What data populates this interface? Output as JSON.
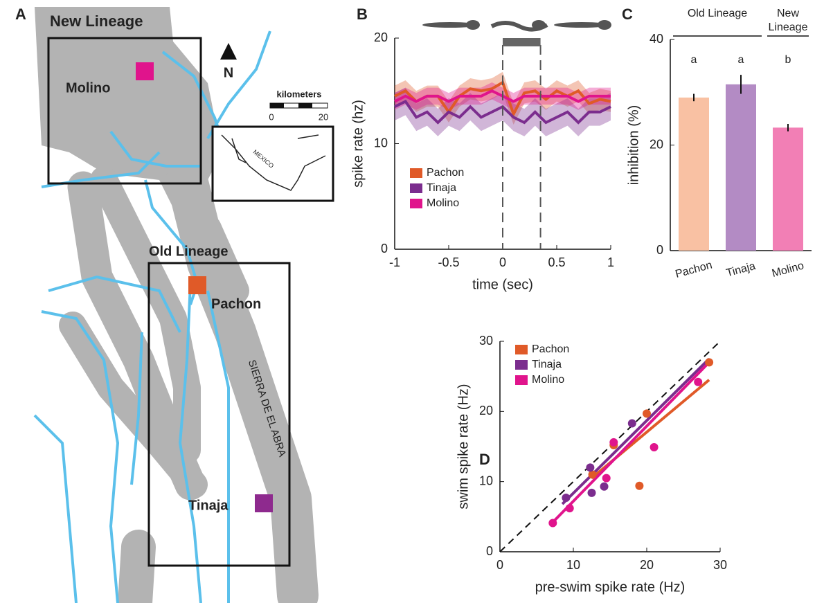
{
  "panel_labels": [
    "A",
    "B",
    "C",
    "D"
  ],
  "map": {
    "new_lineage": "New Lineage",
    "molino": "Molino",
    "north": "N",
    "scale_title": "kilometers",
    "scale_start": "0",
    "scale_end": "20",
    "country": "MEXICO",
    "old_lineage": "Old Lineage",
    "pachon": "Pachon",
    "sierra": "SIERRA DE EL ABRA",
    "tinaja": "Tinaja"
  },
  "chart_data": [
    {
      "type": "line",
      "xlabel": "time (sec)",
      "ylabel": "spike rate (hz)",
      "x": [
        -1,
        -0.9,
        -0.8,
        -0.7,
        -0.6,
        -0.5,
        -0.4,
        -0.3,
        -0.2,
        -0.1,
        0,
        0.1,
        0.2,
        0.3,
        0.4,
        0.5,
        0.6,
        0.7,
        0.8,
        0.9,
        1
      ],
      "xlim": [
        -1,
        1
      ],
      "xticks": [
        -1,
        -0.5,
        0,
        0.5,
        1
      ],
      "ylim": [
        0,
        20
      ],
      "yticks": [
        0,
        10,
        20
      ],
      "swim_window": [
        0,
        0.35
      ],
      "legend": "lower left",
      "series": [
        {
          "name": "Pachon",
          "color": "#e05a28",
          "values": [
            14.5,
            15,
            14,
            14.5,
            14.5,
            13,
            14.5,
            15.2,
            15,
            15.2,
            15.8,
            12.8,
            14.8,
            15,
            14.2,
            15,
            14.5,
            15,
            13.8,
            14.2,
            14
          ],
          "errors": [
            1,
            1,
            1,
            1,
            1,
            1,
            1,
            1,
            1,
            1,
            1,
            1,
            1,
            1,
            1,
            1,
            1,
            1,
            1,
            1,
            1
          ]
        },
        {
          "name": "Tinaja",
          "color": "#7b2d8e",
          "values": [
            13.5,
            14,
            12.5,
            13,
            12,
            13,
            12.5,
            13.5,
            12.5,
            13,
            13.5,
            12.5,
            12,
            13,
            12,
            12.5,
            13,
            12,
            13,
            13,
            13.5
          ],
          "errors": [
            1.3,
            1.3,
            1.3,
            1.3,
            1.3,
            1.3,
            1.3,
            1.3,
            1.3,
            1.3,
            1.3,
            1.3,
            1.3,
            1.3,
            1.3,
            1.3,
            1.3,
            1.3,
            1.3,
            1.3,
            1.3
          ]
        },
        {
          "name": "Molino",
          "color": "#e0148c",
          "values": [
            14,
            14.5,
            14,
            14.5,
            14.5,
            14,
            14.5,
            14.5,
            14.5,
            15,
            14.5,
            14,
            14.5,
            14.5,
            14.5,
            14.5,
            14.5,
            14,
            14.5,
            14.5,
            14.5
          ],
          "errors": [
            0.8,
            0.8,
            0.8,
            0.8,
            0.8,
            0.8,
            0.8,
            0.8,
            0.8,
            0.8,
            0.8,
            0.8,
            0.8,
            0.8,
            0.8,
            0.8,
            0.8,
            0.8,
            0.8,
            0.8,
            0.8
          ]
        }
      ]
    },
    {
      "type": "bar",
      "ylabel": "inhibition (%)",
      "categories": [
        "Pachon",
        "Tinaja",
        "Molino"
      ],
      "values": [
        29,
        31.5,
        23.3
      ],
      "errors": [
        0.7,
        1.8,
        0.7
      ],
      "colors": [
        "#f9c1a3",
        "#b38bc4",
        "#f27fb5"
      ],
      "annotations": [
        "a",
        "a",
        "b"
      ],
      "group_labels": [
        "Old Lineage",
        "New Lineage"
      ],
      "ylim": [
        0,
        40
      ],
      "yticks": [
        0,
        20,
        40
      ]
    },
    {
      "type": "scatter",
      "xlabel": "pre-swim spike rate (Hz)",
      "ylabel": "swim spike rate (Hz)",
      "xlim": [
        0,
        30
      ],
      "xticks": [
        0,
        10,
        20,
        30
      ],
      "ylim": [
        0,
        30
      ],
      "yticks": [
        0,
        10,
        20,
        30
      ],
      "legend": "upper left",
      "series": [
        {
          "name": "Pachon",
          "color": "#e05a28",
          "x": [
            12.6,
            15.5,
            20,
            19,
            28.5
          ],
          "values": [
            11,
            15.2,
            19.7,
            9.4,
            27
          ],
          "fit": {
            "x": [
              12.5,
              28.5
            ],
            "y": [
              10.5,
              24.5
            ]
          }
        },
        {
          "name": "Tinaja",
          "color": "#7b2d8e",
          "x": [
            9,
            12.3,
            12.5,
            14.2,
            18
          ],
          "values": [
            7.7,
            12,
            8.4,
            9.3,
            18.3
          ],
          "fit": {
            "x": [
              8.5,
              28.5
            ],
            "y": [
              6.8,
              27.5
            ]
          }
        },
        {
          "name": "Molino",
          "color": "#e0148c",
          "x": [
            7.2,
            9.5,
            14.5,
            15.5,
            21,
            27
          ],
          "values": [
            4.1,
            6.2,
            10.5,
            15.6,
            14.9,
            24.2
          ],
          "fit": {
            "x": [
              7,
              28.5
            ],
            "y": [
              4,
              27
            ]
          }
        }
      ]
    }
  ]
}
